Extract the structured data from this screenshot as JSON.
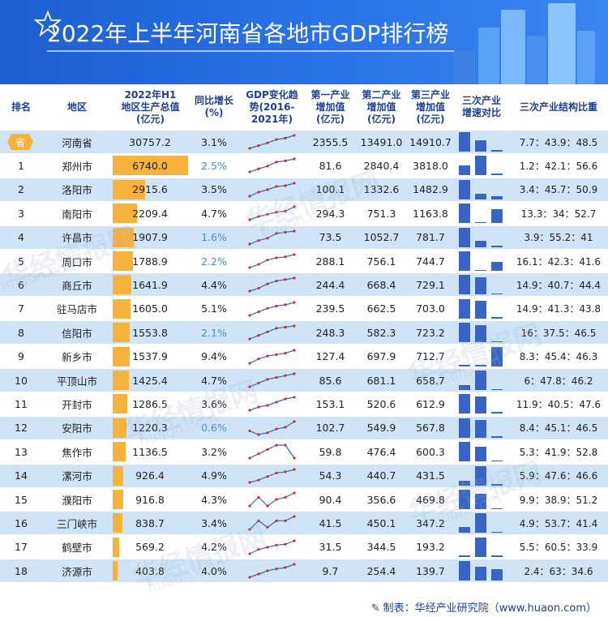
{
  "title": "2022年上半年河南省各地市GDP排行榜",
  "headers": {
    "rank": "排名",
    "region": "地区",
    "gdp": [
      "2022年H1",
      "地区生产总值",
      "(亿元)"
    ],
    "growth": [
      "同比增长",
      "(%)"
    ],
    "trend": [
      "GDP变化趋",
      "势(2016-",
      "2021年)"
    ],
    "primary": [
      "第一产业",
      "增加值",
      "(亿元)"
    ],
    "secondary": [
      "第二产业",
      "增加值",
      "(亿元)"
    ],
    "tertiary": [
      "第三产业",
      "增加值",
      "(亿元)"
    ],
    "speed": [
      "三次产业",
      "增速对比"
    ],
    "structure": "三次产业结构比重"
  },
  "province_badge": "省",
  "footer": {
    "icon": "pen-icon",
    "text": "制表：华经产业研究院（www.huaon.com）"
  },
  "watermarks": [
    "华经情报网",
    "huaon.com"
  ],
  "colors": {
    "header_bg": "#2a73e8",
    "accent_bar": "#f7b23b",
    "alt_row": "#cfe4f7",
    "mini_bar": "#3a64c4",
    "trend_line": "#3a64c4",
    "trend_dot": "#cc2d2d",
    "growth_highlight": "#4a8ecb"
  },
  "chart_data": {
    "type": "table",
    "rows": [
      {
        "rank": "省",
        "region": "河南省",
        "gdp": "30757.2",
        "growth": "3.1%",
        "primary": "2355.5",
        "secondary": "13491.0",
        "tertiary": "14910.7",
        "structure": "7.7：43.9：48.5",
        "trend": [
          40,
          44,
          48,
          53,
          55,
          59
        ],
        "speed": [
          1,
          0.6,
          0.1
        ],
        "gdp_value": 30757.2,
        "highlight": false
      },
      {
        "rank": "1",
        "region": "郑州市",
        "gdp": "6740.0",
        "growth": "2.5%",
        "primary": "81.6",
        "secondary": "2840.4",
        "tertiary": "3818.0",
        "structure": "1.2：42.1：56.6",
        "trend": [
          8.0,
          9.1,
          10.1,
          11.6,
          12.0,
          12.7
        ],
        "speed": [
          0.5,
          1,
          0.1
        ],
        "gdp_value": 6740.0,
        "highlight": true
      },
      {
        "rank": "2",
        "region": "洛阳市",
        "gdp": "2915.6",
        "growth": "3.5%",
        "primary": "100.1",
        "secondary": "1332.6",
        "tertiary": "1482.9",
        "structure": "3.4：45.7：50.9",
        "trend": [
          3.8,
          4.3,
          4.6,
          5.0,
          5.1,
          5.4
        ],
        "speed": [
          1,
          0.3,
          0.15
        ],
        "gdp_value": 2915.6,
        "highlight": false
      },
      {
        "rank": "3",
        "region": "南阳市",
        "gdp": "2209.4",
        "growth": "4.7%",
        "primary": "294.3",
        "secondary": "751.3",
        "tertiary": "1163.8",
        "structure": "13.3：34：52.7",
        "trend": [
          3.1,
          3.4,
          3.6,
          3.8,
          3.9,
          4.3
        ],
        "speed": [
          1,
          0.05,
          0.7
        ],
        "gdp_value": 2209.4,
        "highlight": false
      },
      {
        "rank": "4",
        "region": "许昌市",
        "gdp": "1907.9",
        "growth": "1.6%",
        "primary": "73.5",
        "secondary": "1052.7",
        "tertiary": "781.7",
        "structure": "3.9：55.2：41",
        "trend": [
          2.5,
          2.8,
          3.0,
          3.4,
          3.5,
          3.6
        ],
        "speed": [
          1,
          0.3,
          0.05
        ],
        "gdp_value": 1907.9,
        "highlight": true
      },
      {
        "rank": "5",
        "region": "周口市",
        "gdp": "1788.9",
        "growth": "2.2%",
        "primary": "288.1",
        "secondary": "756.1",
        "tertiary": "744.7",
        "structure": "16.1：42.3：41.6",
        "trend": [
          2.3,
          2.6,
          3.0,
          3.2,
          3.3,
          3.5
        ],
        "speed": [
          1,
          0.05,
          0.45
        ],
        "gdp_value": 1788.9,
        "highlight": true
      },
      {
        "rank": "6",
        "region": "商丘市",
        "gdp": "1641.9",
        "growth": "4.4%",
        "primary": "244.4",
        "secondary": "668.4",
        "tertiary": "729.1",
        "structure": "14.9：40.7：44.4",
        "trend": [
          2.2,
          2.4,
          2.7,
          2.9,
          3.0,
          3.1
        ],
        "speed": [
          1,
          0.9,
          0.05
        ],
        "gdp_value": 1641.9,
        "highlight": false
      },
      {
        "rank": "7",
        "region": "驻马店市",
        "gdp": "1605.0",
        "growth": "5.1%",
        "primary": "239.5",
        "secondary": "662.5",
        "tertiary": "703.0",
        "structure": "14.9：41.3：43.8",
        "trend": [
          2.1,
          2.4,
          2.7,
          2.9,
          3.0,
          3.2
        ],
        "speed": [
          1,
          0.9,
          0.05
        ],
        "gdp_value": 1605.0,
        "highlight": false
      },
      {
        "rank": "8",
        "region": "信阳市",
        "gdp": "1553.8",
        "growth": "2.1%",
        "primary": "248.3",
        "secondary": "582.3",
        "tertiary": "723.2",
        "structure": "16：37.5：46.5",
        "trend": [
          2.3,
          2.6,
          2.9,
          3.2,
          3.3,
          3.4
        ],
        "speed": [
          1,
          0.9,
          0.05
        ],
        "gdp_value": 1553.8,
        "highlight": true
      },
      {
        "rank": "9",
        "region": "新乡市",
        "gdp": "1537.9",
        "growth": "9.4%",
        "primary": "127.4",
        "secondary": "697.9",
        "tertiary": "712.7",
        "structure": "8.3：45.4：46.3",
        "trend": [
          2.3,
          2.6,
          2.8,
          2.9,
          3.0,
          3.2
        ],
        "speed": [
          0.05,
          0.05,
          1
        ],
        "gdp_value": 1537.9,
        "highlight": false
      },
      {
        "rank": "10",
        "region": "平顶山市",
        "gdp": "1425.4",
        "growth": "4.7%",
        "primary": "85.6",
        "secondary": "681.1",
        "tertiary": "658.7",
        "structure": "6：47.8：46.2",
        "trend": [
          2.0,
          2.2,
          2.4,
          2.5,
          2.6,
          2.7
        ],
        "speed": [
          0.25,
          1,
          0.05
        ],
        "gdp_value": 1425.4,
        "highlight": false
      },
      {
        "rank": "11",
        "region": "开封市",
        "gdp": "1286.5",
        "growth": "3.6%",
        "primary": "153.1",
        "secondary": "520.6",
        "tertiary": "612.9",
        "structure": "11.9：40.5：47.6",
        "trend": [
          1.9,
          2.1,
          2.2,
          2.4,
          2.6,
          2.7
        ],
        "speed": [
          1,
          0.9,
          0.1
        ],
        "gdp_value": 1286.5,
        "highlight": false
      },
      {
        "rank": "12",
        "region": "安阳市",
        "gdp": "1220.3",
        "growth": "0.6%",
        "primary": "102.7",
        "secondary": "549.9",
        "tertiary": "567.8",
        "structure": "8.4：45.1：46.5",
        "trend": [
          2.2,
          2.0,
          2.1,
          2.3,
          2.4,
          2.7
        ],
        "speed": [
          1,
          0.9,
          0.05
        ],
        "gdp_value": 1220.3,
        "highlight": true
      },
      {
        "rank": "13",
        "region": "焦作市",
        "gdp": "1136.5",
        "growth": "3.2%",
        "primary": "59.8",
        "secondary": "476.4",
        "tertiary": "600.3",
        "structure": "5.3：41.9：52.8",
        "trend": [
          2.0,
          2.2,
          2.4,
          2.6,
          2.6,
          2.0
        ],
        "speed": [
          1,
          0.75,
          0.05
        ],
        "gdp_value": 1136.5,
        "highlight": false
      },
      {
        "rank": "14",
        "region": "漯河市",
        "gdp": "926.4",
        "growth": "4.9%",
        "primary": "54.3",
        "secondary": "440.7",
        "tertiary": "431.5",
        "structure": "5.9：47.6：46.6",
        "trend": [
          1.1,
          1.2,
          1.35,
          1.5,
          1.55,
          1.65
        ],
        "speed": [
          0.25,
          1,
          0.05
        ],
        "gdp_value": 926.4,
        "highlight": false
      },
      {
        "rank": "15",
        "region": "濮阳市",
        "gdp": "916.8",
        "growth": "4.3%",
        "primary": "90.4",
        "secondary": "356.6",
        "tertiary": "469.8",
        "structure": "9.9：38.9：51.2",
        "trend": [
          1.5,
          1.7,
          1.5,
          1.65,
          1.7,
          1.8
        ],
        "speed": [
          1,
          0.8,
          0.05
        ],
        "gdp_value": 916.8,
        "highlight": false
      },
      {
        "rank": "16",
        "region": "三门峡市",
        "gdp": "838.7",
        "growth": "3.4%",
        "primary": "41.5",
        "secondary": "450.1",
        "tertiary": "347.2",
        "structure": "4.9：53.7：41.4",
        "trend": [
          1.4,
          1.6,
          1.45,
          1.6,
          1.6,
          1.7
        ],
        "speed": [
          0.3,
          1,
          0.05
        ],
        "gdp_value": 838.7,
        "highlight": false
      },
      {
        "rank": "17",
        "region": "鹤壁市",
        "gdp": "569.2",
        "growth": "4.2%",
        "primary": "31.5",
        "secondary": "344.5",
        "tertiary": "193.2",
        "structure": "5.5：60.5：33.9",
        "trend": [
          0.8,
          0.9,
          0.95,
          1.0,
          1.02,
          1.1
        ],
        "speed": [
          0.05,
          1,
          0.05
        ],
        "gdp_value": 569.2,
        "highlight": false
      },
      {
        "rank": "18",
        "region": "济源市",
        "gdp": "403.8",
        "growth": "4.0%",
        "primary": "9.7",
        "secondary": "254.4",
        "tertiary": "139.7",
        "structure": "2.4：63：34.6",
        "trend": [
          0.55,
          0.6,
          0.65,
          0.68,
          0.7,
          0.75
        ],
        "speed": [
          1,
          0.7,
          0.6
        ],
        "gdp_value": 403.8,
        "highlight": false
      }
    ]
  }
}
